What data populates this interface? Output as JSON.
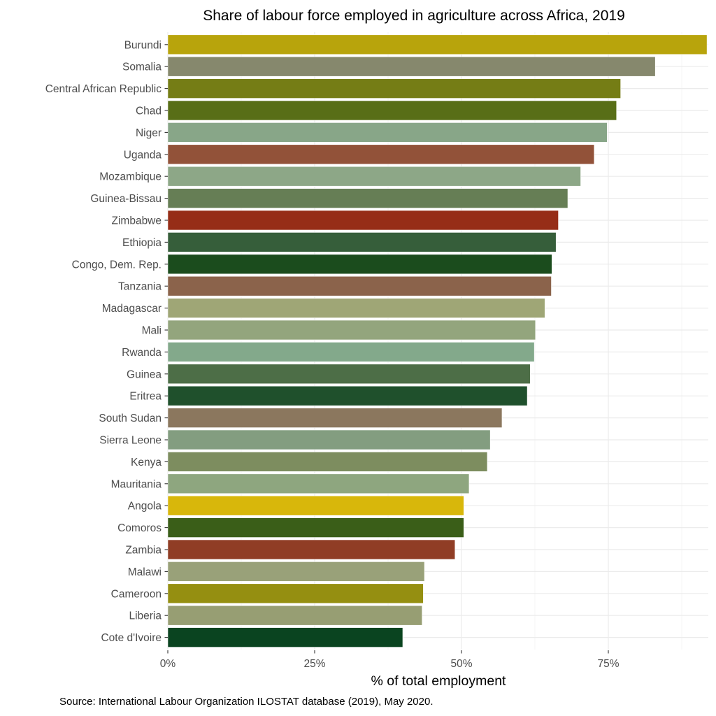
{
  "chart_data": {
    "type": "bar",
    "orientation": "horizontal",
    "title": "Share of labour force employed in agriculture across Africa, 2019",
    "xlabel": "% of total employment",
    "ylabel": "",
    "caption": "Source: International Labour Organization ILOSTAT database (2019), May 2020.",
    "xlim": [
      0,
      91.8
    ],
    "x_ticks": [
      0,
      25,
      50,
      75
    ],
    "x_tick_labels": [
      "0%",
      "25%",
      "50%",
      "75%"
    ],
    "grid": true,
    "legend": "none",
    "categories": [
      "Burundi",
      "Somalia",
      "Central African Republic",
      "Chad",
      "Niger",
      "Uganda",
      "Mozambique",
      "Guinea-Bissau",
      "Zimbabwe",
      "Ethiopia",
      "Congo, Dem. Rep.",
      "Tanzania",
      "Madagascar",
      "Mali",
      "Rwanda",
      "Guinea",
      "Eritrea",
      "South Sudan",
      "Sierra Leone",
      "Kenya",
      "Mauritania",
      "Angola",
      "Comoros",
      "Zambia",
      "Malawi",
      "Cameroon",
      "Liberia",
      "Cote d'Ivoire"
    ],
    "values": [
      91.8,
      83.0,
      77.1,
      76.4,
      74.8,
      72.6,
      70.3,
      68.1,
      66.5,
      66.1,
      65.4,
      65.3,
      64.2,
      62.6,
      62.4,
      61.7,
      61.2,
      56.9,
      54.9,
      54.4,
      51.3,
      50.4,
      50.4,
      48.9,
      43.7,
      43.5,
      43.3,
      40.0
    ],
    "colors": [
      "#b8a40c",
      "#86886d",
      "#757d15",
      "#586e17",
      "#88a688",
      "#925239",
      "#8da787",
      "#667e55",
      "#962d17",
      "#365e3a",
      "#1b4c1d",
      "#8b634b",
      "#9fa676",
      "#93a57d",
      "#83a98b",
      "#4d6e47",
      "#1f502c",
      "#8b775e",
      "#839d80",
      "#7d8d5f",
      "#8ea67f",
      "#d8b70b",
      "#3a5e18",
      "#903d25",
      "#99a179",
      "#958f11",
      "#979e73",
      "#0a4420"
    ]
  }
}
